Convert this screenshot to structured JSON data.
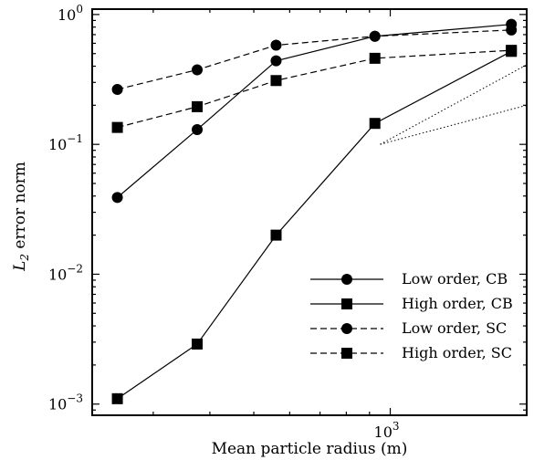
{
  "chart_data": {
    "type": "line",
    "xlabel": "Mean particle radius (m)",
    "ylabel": "L",
    "ylabel_sub": "2",
    "ylabel_rest": " error norm",
    "xscale": "log",
    "yscale": "log",
    "xlim": [
      220,
      2000
    ],
    "ylim": [
      0.00082,
      1.1
    ],
    "x_tick_labels": [
      {
        "value": 1000,
        "base": "10",
        "exp": "3"
      }
    ],
    "x_minor_ticks": [
      300,
      400,
      500,
      600,
      700,
      800,
      900,
      2000
    ],
    "y_tick_labels": [
      {
        "value": 1,
        "base": "10",
        "exp": "0"
      },
      {
        "value": 0.1,
        "base": "10",
        "exp": "−1"
      },
      {
        "value": 0.01,
        "base": "10",
        "exp": "−2"
      },
      {
        "value": 0.001,
        "base": "10",
        "exp": "−3"
      }
    ],
    "grid": false,
    "legend_position": "bottom-right",
    "x": [
      250,
      375,
      560,
      925,
      1850
    ],
    "series": [
      {
        "name": "Low order, CB",
        "marker": "circle",
        "dash": "solid",
        "values": [
          0.039,
          0.13,
          0.44,
          0.68,
          0.84
        ]
      },
      {
        "name": "High order, CB",
        "marker": "square",
        "dash": "solid",
        "values": [
          0.0011,
          0.0029,
          0.02,
          0.145,
          0.52
        ]
      },
      {
        "name": "Low order, SC",
        "marker": "circle",
        "dash": "dashed",
        "values": [
          0.265,
          0.375,
          0.58,
          0.68,
          0.76
        ]
      },
      {
        "name": "High order, SC",
        "marker": "square",
        "dash": "dashed",
        "values": [
          0.135,
          0.195,
          0.31,
          0.46,
          0.53
        ]
      }
    ],
    "reference_lines": [
      {
        "name": "slope-1-reference",
        "points": [
          [
            950,
            0.1
          ],
          [
            2000,
            0.2
          ]
        ]
      },
      {
        "name": "slope-2-reference",
        "points": [
          [
            950,
            0.1
          ],
          [
            2000,
            0.41
          ]
        ]
      }
    ]
  }
}
